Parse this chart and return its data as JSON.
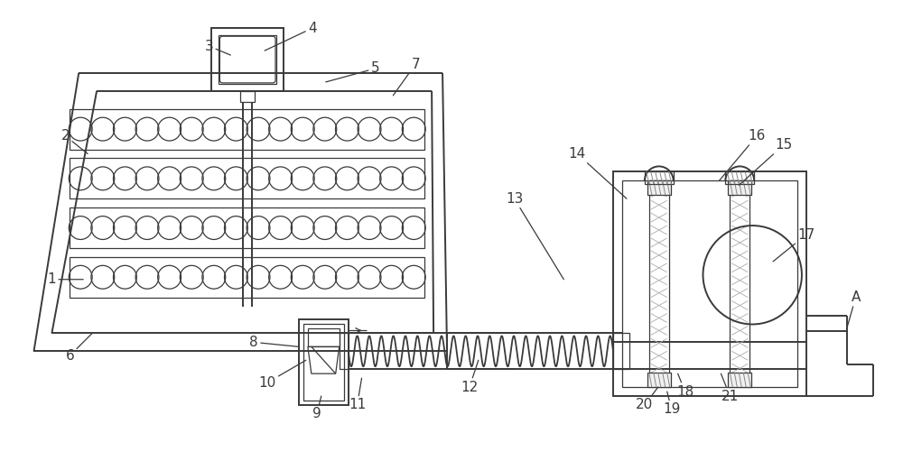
{
  "bg_color": "#ffffff",
  "line_color": "#3a3a3a",
  "line_width": 1.4,
  "thin_line": 0.9,
  "fig_width": 10.0,
  "fig_height": 5.21
}
